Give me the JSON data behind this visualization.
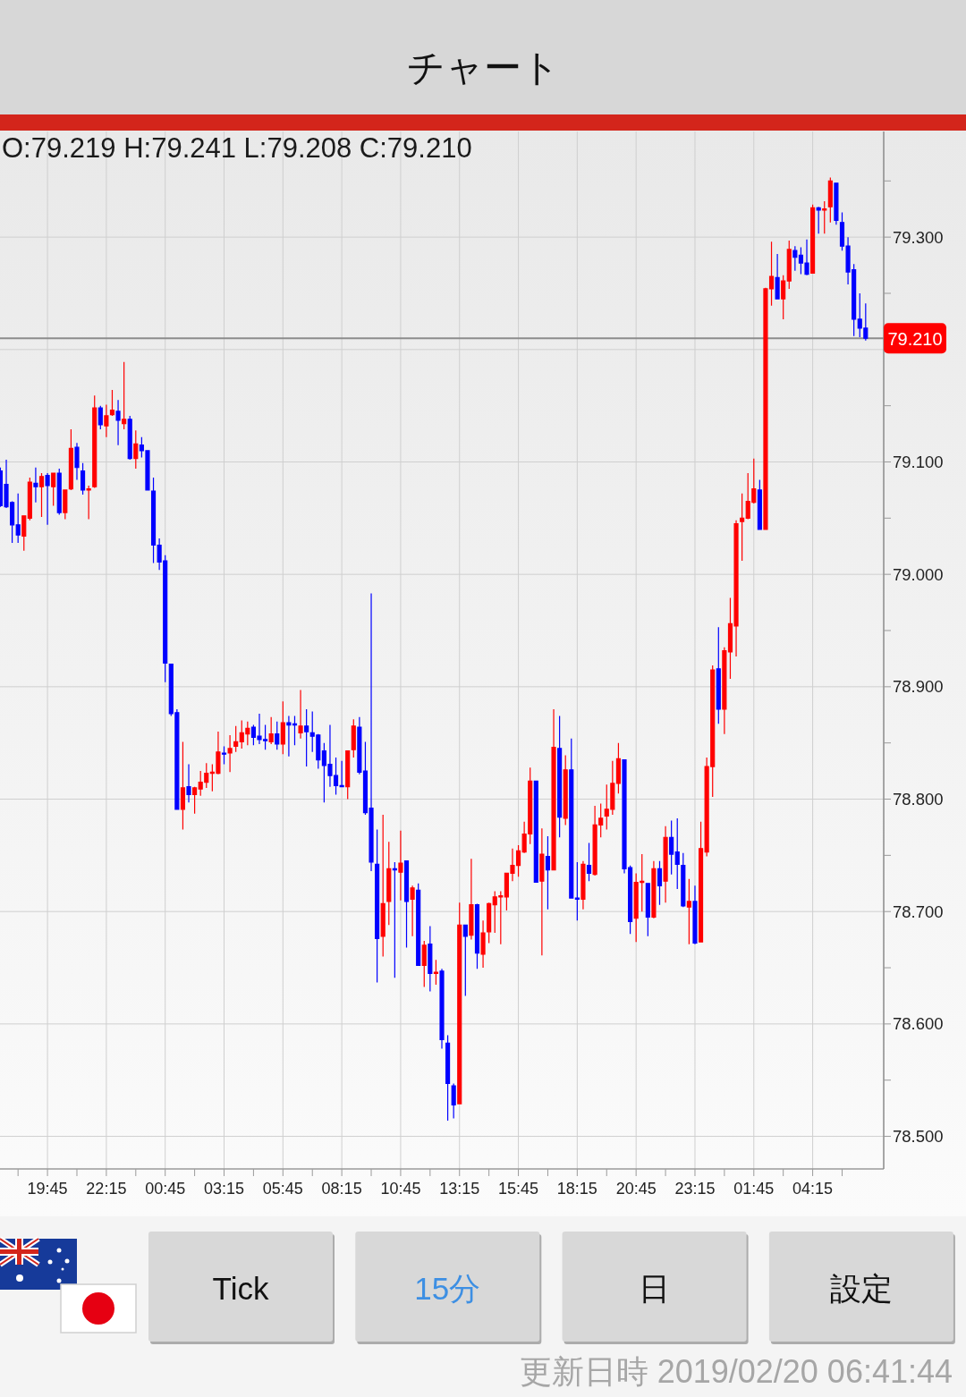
{
  "chart_data": {
    "type": "candlestick",
    "title": "チャート",
    "x": [
      "2019-02-18T17:45",
      "2019-02-18T18:00",
      "2019-02-18T18:15",
      "2019-02-18T18:30",
      "2019-02-18T18:45",
      "2019-02-18T19:00",
      "2019-02-18T19:15",
      "2019-02-18T19:30",
      "2019-02-18T19:45",
      "2019-02-18T20:00",
      "2019-02-18T20:15",
      "2019-02-18T20:30",
      "2019-02-18T20:45",
      "2019-02-18T21:00",
      "2019-02-18T21:15",
      "2019-02-18T21:30",
      "2019-02-18T21:45",
      "2019-02-18T22:00",
      "2019-02-18T22:15",
      "2019-02-18T22:30",
      "2019-02-18T22:45",
      "2019-02-18T23:00",
      "2019-02-18T23:15",
      "2019-02-18T23:30",
      "2019-02-18T23:45",
      "2019-02-19T00:00",
      "2019-02-19T00:15",
      "2019-02-19T00:30",
      "2019-02-19T00:45",
      "2019-02-19T01:00",
      "2019-02-19T01:15",
      "2019-02-19T01:30",
      "2019-02-19T01:45",
      "2019-02-19T02:00",
      "2019-02-19T02:15",
      "2019-02-19T02:30",
      "2019-02-19T02:45",
      "2019-02-19T03:00",
      "2019-02-19T03:15",
      "2019-02-19T03:30",
      "2019-02-19T03:45",
      "2019-02-19T04:00",
      "2019-02-19T04:15",
      "2019-02-19T04:30",
      "2019-02-19T04:45",
      "2019-02-19T05:00",
      "2019-02-19T05:15",
      "2019-02-19T05:30",
      "2019-02-19T05:45",
      "2019-02-19T06:00",
      "2019-02-19T06:15",
      "2019-02-19T06:30",
      "2019-02-19T06:45",
      "2019-02-19T07:00",
      "2019-02-19T07:15",
      "2019-02-19T07:30",
      "2019-02-19T07:45",
      "2019-02-19T08:00",
      "2019-02-19T08:15",
      "2019-02-19T08:30",
      "2019-02-19T08:45",
      "2019-02-19T09:00",
      "2019-02-19T09:15",
      "2019-02-19T09:30",
      "2019-02-19T09:45",
      "2019-02-19T10:00",
      "2019-02-19T10:15",
      "2019-02-19T10:30",
      "2019-02-19T10:45",
      "2019-02-19T11:00",
      "2019-02-19T11:15",
      "2019-02-19T11:30",
      "2019-02-19T11:45",
      "2019-02-19T12:00",
      "2019-02-19T12:15",
      "2019-02-19T12:30",
      "2019-02-19T12:45",
      "2019-02-19T13:00",
      "2019-02-19T13:15",
      "2019-02-19T13:30",
      "2019-02-19T13:45",
      "2019-02-19T14:00",
      "2019-02-19T14:15",
      "2019-02-19T14:30",
      "2019-02-19T14:45",
      "2019-02-19T15:00",
      "2019-02-19T15:15",
      "2019-02-19T15:30",
      "2019-02-19T15:45",
      "2019-02-19T16:00",
      "2019-02-19T16:15",
      "2019-02-19T16:30",
      "2019-02-19T16:45",
      "2019-02-19T17:00",
      "2019-02-19T17:15",
      "2019-02-19T17:30",
      "2019-02-19T17:45",
      "2019-02-19T18:00",
      "2019-02-19T18:15",
      "2019-02-19T18:30",
      "2019-02-19T18:45",
      "2019-02-19T19:00",
      "2019-02-19T19:15",
      "2019-02-19T19:30",
      "2019-02-19T19:45",
      "2019-02-19T20:00",
      "2019-02-19T20:15",
      "2019-02-19T20:30",
      "2019-02-19T20:45",
      "2019-02-19T21:00",
      "2019-02-19T21:15",
      "2019-02-19T21:30",
      "2019-02-19T21:45",
      "2019-02-19T22:00",
      "2019-02-19T22:15",
      "2019-02-19T22:30",
      "2019-02-19T22:45",
      "2019-02-19T23:00",
      "2019-02-19T23:15",
      "2019-02-19T23:30",
      "2019-02-19T23:45",
      "2019-02-20T00:00",
      "2019-02-20T00:15",
      "2019-02-20T00:30",
      "2019-02-20T00:45",
      "2019-02-20T01:00",
      "2019-02-20T01:15",
      "2019-02-20T01:30",
      "2019-02-20T01:45",
      "2019-02-20T02:00",
      "2019-02-20T02:15",
      "2019-02-20T02:30",
      "2019-02-20T02:45",
      "2019-02-20T03:00",
      "2019-02-20T03:15",
      "2019-02-20T03:30",
      "2019-02-20T03:45",
      "2019-02-20T04:00",
      "2019-02-20T04:15",
      "2019-02-20T04:30",
      "2019-02-20T04:45",
      "2019-02-20T05:00",
      "2019-02-20T05:15",
      "2019-02-20T05:30",
      "2019-02-20T05:45",
      "2019-02-20T06:00",
      "2019-02-20T06:15",
      "2019-02-20T06:30"
    ],
    "ohlc": [
      [
        79.092,
        79.095,
        79.06,
        79.061
      ],
      [
        79.08,
        79.102,
        79.059,
        79.06
      ],
      [
        79.064,
        79.065,
        79.028,
        79.044
      ],
      [
        79.044,
        79.072,
        79.028,
        79.035
      ],
      [
        79.034,
        79.052,
        79.021,
        79.052
      ],
      [
        79.05,
        79.086,
        79.048,
        79.082
      ],
      [
        79.081,
        79.095,
        79.064,
        79.078
      ],
      [
        79.078,
        79.09,
        79.051,
        79.087
      ],
      [
        79.088,
        79.09,
        79.044,
        79.079
      ],
      [
        79.078,
        79.09,
        79.061,
        79.09
      ],
      [
        79.09,
        79.094,
        79.053,
        79.055
      ],
      [
        79.055,
        79.075,
        79.049,
        79.075
      ],
      [
        79.076,
        79.129,
        79.075,
        79.112
      ],
      [
        79.113,
        79.117,
        79.084,
        79.095
      ],
      [
        79.092,
        79.099,
        79.071,
        79.075
      ],
      [
        79.075,
        79.079,
        79.049,
        79.076
      ],
      [
        79.078,
        79.159,
        79.077,
        79.148
      ],
      [
        79.148,
        79.15,
        79.129,
        79.133
      ],
      [
        79.132,
        79.151,
        79.122,
        79.141
      ],
      [
        79.142,
        79.164,
        79.141,
        79.146
      ],
      [
        79.145,
        79.155,
        79.115,
        79.137
      ],
      [
        79.134,
        79.189,
        79.129,
        79.138
      ],
      [
        79.138,
        79.141,
        79.102,
        79.103
      ],
      [
        79.103,
        79.128,
        79.094,
        79.116
      ],
      [
        79.115,
        79.122,
        79.104,
        79.11
      ],
      [
        79.11,
        79.11,
        79.075,
        79.075
      ],
      [
        79.074,
        79.086,
        79.01,
        79.026
      ],
      [
        79.026,
        79.032,
        79.004,
        79.011
      ],
      [
        79.012,
        79.017,
        78.904,
        78.921
      ],
      [
        78.92,
        78.92,
        78.874,
        78.876
      ],
      [
        78.877,
        78.88,
        78.791,
        78.791
      ],
      [
        78.791,
        78.851,
        78.773,
        78.81
      ],
      [
        78.811,
        78.831,
        78.797,
        78.804
      ],
      [
        78.804,
        78.811,
        78.787,
        78.81
      ],
      [
        78.809,
        78.825,
        78.803,
        78.815
      ],
      [
        78.815,
        78.832,
        78.81,
        78.823
      ],
      [
        78.823,
        78.831,
        78.807,
        78.824
      ],
      [
        78.823,
        78.86,
        78.822,
        78.842
      ],
      [
        78.841,
        78.847,
        78.831,
        78.84
      ],
      [
        78.841,
        78.857,
        78.824,
        78.845
      ],
      [
        78.847,
        78.865,
        78.842,
        78.851
      ],
      [
        78.851,
        78.87,
        78.845,
        78.859
      ],
      [
        78.858,
        78.869,
        78.848,
        78.863
      ],
      [
        78.864,
        78.866,
        78.848,
        78.855
      ],
      [
        78.856,
        78.876,
        78.849,
        78.853
      ],
      [
        78.853,
        78.866,
        78.844,
        78.852
      ],
      [
        78.851,
        78.873,
        78.849,
        78.858
      ],
      [
        78.858,
        78.869,
        78.844,
        78.849
      ],
      [
        78.849,
        78.887,
        78.84,
        78.868
      ],
      [
        78.868,
        78.874,
        78.838,
        78.866
      ],
      [
        78.867,
        78.874,
        78.848,
        78.866
      ],
      [
        78.859,
        78.897,
        78.854,
        78.865
      ],
      [
        78.865,
        78.88,
        78.829,
        78.86
      ],
      [
        78.859,
        78.878,
        78.842,
        78.856
      ],
      [
        78.857,
        78.858,
        78.827,
        78.835
      ],
      [
        78.843,
        78.85,
        78.797,
        78.83
      ],
      [
        78.831,
        78.866,
        78.811,
        78.821
      ],
      [
        78.821,
        78.837,
        78.804,
        78.812
      ],
      [
        78.812,
        78.834,
        78.811,
        78.811
      ],
      [
        78.811,
        78.843,
        78.8,
        78.843
      ],
      [
        78.844,
        78.871,
        78.837,
        78.865
      ],
      [
        78.864,
        78.873,
        78.822,
        78.824
      ],
      [
        78.825,
        78.851,
        78.786,
        78.788
      ],
      [
        78.792,
        78.983,
        78.736,
        78.744
      ],
      [
        78.742,
        78.773,
        78.637,
        78.676
      ],
      [
        78.678,
        78.786,
        78.66,
        78.707
      ],
      [
        78.709,
        78.762,
        78.688,
        78.738
      ],
      [
        78.738,
        78.744,
        78.641,
        78.737
      ],
      [
        78.735,
        78.772,
        78.71,
        78.743
      ],
      [
        78.745,
        78.745,
        78.668,
        78.709
      ],
      [
        78.711,
        78.723,
        78.678,
        78.721
      ],
      [
        78.719,
        78.725,
        78.652,
        78.652
      ],
      [
        78.652,
        78.674,
        78.633,
        78.67
      ],
      [
        78.671,
        78.687,
        78.629,
        78.645
      ],
      [
        78.645,
        78.657,
        78.635,
        78.646
      ],
      [
        78.647,
        78.649,
        78.578,
        78.586
      ],
      [
        78.583,
        78.59,
        78.514,
        78.547
      ],
      [
        78.545,
        78.547,
        78.516,
        78.528
      ],
      [
        78.529,
        78.708,
        78.529,
        78.688
      ],
      [
        78.688,
        78.688,
        78.625,
        78.678
      ],
      [
        78.679,
        78.747,
        78.675,
        78.706
      ],
      [
        78.706,
        78.707,
        78.649,
        78.663
      ],
      [
        78.662,
        78.692,
        78.65,
        78.681
      ],
      [
        78.682,
        78.708,
        78.672,
        78.707
      ],
      [
        78.706,
        78.718,
        78.681,
        78.713
      ],
      [
        78.713,
        78.718,
        78.671,
        78.714
      ],
      [
        78.713,
        78.734,
        78.701,
        78.734
      ],
      [
        78.734,
        78.756,
        78.727,
        78.741
      ],
      [
        78.741,
        78.759,
        78.731,
        78.754
      ],
      [
        78.753,
        78.78,
        78.752,
        78.769
      ],
      [
        78.769,
        78.828,
        78.76,
        78.816
      ],
      [
        78.816,
        78.816,
        78.726,
        78.726
      ],
      [
        78.727,
        78.774,
        78.661,
        78.751
      ],
      [
        78.749,
        78.767,
        78.702,
        78.737
      ],
      [
        78.737,
        78.88,
        78.737,
        78.846
      ],
      [
        78.845,
        78.874,
        78.766,
        78.784
      ],
      [
        78.783,
        78.839,
        78.777,
        78.826
      ],
      [
        78.826,
        78.854,
        78.712,
        78.712
      ],
      [
        78.712,
        78.744,
        78.692,
        78.711
      ],
      [
        78.711,
        78.745,
        78.702,
        78.742
      ],
      [
        78.741,
        78.761,
        78.727,
        78.734
      ],
      [
        78.733,
        78.794,
        78.732,
        78.777
      ],
      [
        78.777,
        78.796,
        78.766,
        78.783
      ],
      [
        78.785,
        78.813,
        78.773,
        78.791
      ],
      [
        78.791,
        78.834,
        78.786,
        78.814
      ],
      [
        78.814,
        78.85,
        78.805,
        78.836
      ],
      [
        78.835,
        78.835,
        78.734,
        78.738
      ],
      [
        78.739,
        78.741,
        78.68,
        78.691
      ],
      [
        78.694,
        78.734,
        78.673,
        78.726
      ],
      [
        78.726,
        78.751,
        78.7,
        78.727
      ],
      [
        78.725,
        78.725,
        78.678,
        78.695
      ],
      [
        78.695,
        78.745,
        78.694,
        78.738
      ],
      [
        78.738,
        78.745,
        78.706,
        78.723
      ],
      [
        78.727,
        78.776,
        78.708,
        78.766
      ],
      [
        78.766,
        78.781,
        78.733,
        78.751
      ],
      [
        78.753,
        78.783,
        78.72,
        78.742
      ],
      [
        78.741,
        78.752,
        78.704,
        78.705
      ],
      [
        78.704,
        78.729,
        78.671,
        78.709
      ],
      [
        78.709,
        78.723,
        78.671,
        78.672
      ],
      [
        78.673,
        78.78,
        78.673,
        78.756
      ],
      [
        78.753,
        78.837,
        78.749,
        78.829
      ],
      [
        78.829,
        78.919,
        78.802,
        78.915
      ],
      [
        78.916,
        78.953,
        78.867,
        78.88
      ],
      [
        78.88,
        78.935,
        78.858,
        78.932
      ],
      [
        78.931,
        78.979,
        78.907,
        78.956
      ],
      [
        78.954,
        79.048,
        78.927,
        79.045
      ],
      [
        79.047,
        79.072,
        79.012,
        79.05
      ],
      [
        79.05,
        79.09,
        79.049,
        79.065
      ],
      [
        79.064,
        79.103,
        79.063,
        79.076
      ],
      [
        79.075,
        79.084,
        79.04,
        79.04
      ],
      [
        79.04,
        79.255,
        79.04,
        79.254
      ],
      [
        79.254,
        79.296,
        79.239,
        79.265
      ],
      [
        79.264,
        79.285,
        79.245,
        79.245
      ],
      [
        79.245,
        79.266,
        79.227,
        79.261
      ],
      [
        79.261,
        79.297,
        79.254,
        79.289
      ],
      [
        79.288,
        79.292,
        79.27,
        79.282
      ],
      [
        79.284,
        79.291,
        79.267,
        79.277
      ],
      [
        79.277,
        79.298,
        79.266,
        79.267
      ],
      [
        79.268,
        79.329,
        79.268,
        79.326
      ],
      [
        79.326,
        79.327,
        79.303,
        79.324
      ],
      [
        79.324,
        79.332,
        79.303,
        79.325
      ],
      [
        79.327,
        79.353,
        79.313,
        79.35
      ],
      [
        79.348,
        79.348,
        79.311,
        79.315
      ],
      [
        79.313,
        79.322,
        79.288,
        79.292
      ],
      [
        79.292,
        79.3,
        79.258,
        79.269
      ],
      [
        79.271,
        79.276,
        79.212,
        79.227
      ],
      [
        79.227,
        79.25,
        79.211,
        79.219
      ],
      [
        79.219,
        79.241,
        79.208,
        79.21
      ]
    ],
    "colors": [
      "#0000ff",
      "#0000ff",
      "#0000ff",
      "#0000ff",
      "#ff0000",
      "#ff0000",
      "#0000ff",
      "#ff0000",
      "#0000ff",
      "#ff0000",
      "#0000ff",
      "#ff0000",
      "#ff0000",
      "#0000ff",
      "#0000ff",
      "#ff0000",
      "#ff0000",
      "#0000ff",
      "#ff0000",
      "#ff0000",
      "#0000ff",
      "#ff0000",
      "#0000ff",
      "#ff0000",
      "#0000ff",
      "#0000ff",
      "#0000ff",
      "#0000ff",
      "#0000ff",
      "#0000ff",
      "#0000ff",
      "#ff0000",
      "#0000ff",
      "#ff0000",
      "#ff0000",
      "#ff0000",
      "#ff0000",
      "#ff0000",
      "#0000ff",
      "#ff0000",
      "#ff0000",
      "#ff0000",
      "#ff0000",
      "#0000ff",
      "#0000ff",
      "#0000ff",
      "#ff0000",
      "#0000ff",
      "#ff0000",
      "#0000ff",
      "#0000ff",
      "#ff0000",
      "#0000ff",
      "#0000ff",
      "#0000ff",
      "#0000ff",
      "#0000ff",
      "#0000ff",
      "#0000ff",
      "#ff0000",
      "#ff0000",
      "#0000ff",
      "#0000ff",
      "#0000ff",
      "#0000ff",
      "#ff0000",
      "#ff0000",
      "#0000ff",
      "#ff0000",
      "#0000ff",
      "#ff0000",
      "#0000ff",
      "#ff0000",
      "#0000ff",
      "#ff0000",
      "#0000ff",
      "#0000ff",
      "#0000ff",
      "#ff0000",
      "#0000ff",
      "#ff0000",
      "#0000ff",
      "#ff0000",
      "#ff0000",
      "#ff0000",
      "#ff0000",
      "#ff0000",
      "#ff0000",
      "#ff0000",
      "#ff0000",
      "#ff0000",
      "#0000ff",
      "#ff0000",
      "#0000ff",
      "#ff0000",
      "#0000ff",
      "#ff0000",
      "#0000ff",
      "#0000ff",
      "#ff0000",
      "#0000ff",
      "#ff0000",
      "#ff0000",
      "#ff0000",
      "#ff0000",
      "#ff0000",
      "#0000ff",
      "#0000ff",
      "#ff0000",
      "#ff0000",
      "#0000ff",
      "#ff0000",
      "#0000ff",
      "#ff0000",
      "#0000ff",
      "#0000ff",
      "#0000ff",
      "#ff0000",
      "#0000ff",
      "#ff0000",
      "#ff0000",
      "#ff0000",
      "#0000ff",
      "#ff0000",
      "#ff0000",
      "#ff0000",
      "#ff0000",
      "#ff0000",
      "#ff0000",
      "#0000ff",
      "#ff0000",
      "#ff0000",
      "#0000ff",
      "#ff0000",
      "#ff0000",
      "#0000ff",
      "#0000ff",
      "#0000ff",
      "#ff0000",
      "#0000ff",
      "#ff0000",
      "#ff0000",
      "#0000ff",
      "#0000ff",
      "#0000ff",
      "#0000ff",
      "#0000ff",
      "#0000ff"
    ],
    "xlim": [
      "2019-02-18T17:44",
      "2019-02-20T07:16"
    ],
    "xticks": [
      {
        "value": "2019-02-18T18:30",
        "label": null
      },
      {
        "value": "2019-02-18T19:45",
        "label": "19:45"
      },
      {
        "value": "2019-02-18T21:00",
        "label": null
      },
      {
        "value": "2019-02-18T22:15",
        "label": "22:15"
      },
      {
        "value": "2019-02-18T23:30",
        "label": null
      },
      {
        "value": "2019-02-19T00:45",
        "label": "00:45"
      },
      {
        "value": "2019-02-19T02:00",
        "label": null
      },
      {
        "value": "2019-02-19T03:15",
        "label": "03:15"
      },
      {
        "value": "2019-02-19T04:30",
        "label": null
      },
      {
        "value": "2019-02-19T05:45",
        "label": "05:45"
      },
      {
        "value": "2019-02-19T07:00",
        "label": null
      },
      {
        "value": "2019-02-19T08:15",
        "label": "08:15"
      },
      {
        "value": "2019-02-19T09:30",
        "label": null
      },
      {
        "value": "2019-02-19T10:45",
        "label": "10:45"
      },
      {
        "value": "2019-02-19T12:00",
        "label": null
      },
      {
        "value": "2019-02-19T13:15",
        "label": "13:15"
      },
      {
        "value": "2019-02-19T14:30",
        "label": null
      },
      {
        "value": "2019-02-19T15:45",
        "label": "15:45"
      },
      {
        "value": "2019-02-19T17:00",
        "label": null
      },
      {
        "value": "2019-02-19T18:15",
        "label": "18:15"
      },
      {
        "value": "2019-02-19T19:30",
        "label": null
      },
      {
        "value": "2019-02-19T20:45",
        "label": "20:45"
      },
      {
        "value": "2019-02-19T22:00",
        "label": null
      },
      {
        "value": "2019-02-19T23:15",
        "label": "23:15"
      },
      {
        "value": "2019-02-20T00:30",
        "label": null
      },
      {
        "value": "2019-02-20T01:45",
        "label": "01:45"
      },
      {
        "value": "2019-02-20T03:00",
        "label": null
      },
      {
        "value": "2019-02-20T04:15",
        "label": "04:15"
      },
      {
        "value": "2019-02-20T05:30",
        "label": null
      }
    ],
    "ylim": [
      78.471,
      79.394
    ],
    "yticks": [
      {
        "value": 78.5,
        "label": "78.500"
      },
      {
        "value": 78.55,
        "label": null
      },
      {
        "value": 78.6,
        "label": "78.600"
      },
      {
        "value": 78.65,
        "label": null
      },
      {
        "value": 78.7,
        "label": "78.700"
      },
      {
        "value": 78.75,
        "label": null
      },
      {
        "value": 78.8,
        "label": "78.800"
      },
      {
        "value": 78.85,
        "label": null
      },
      {
        "value": 78.9,
        "label": "78.900"
      },
      {
        "value": 78.95,
        "label": null
      },
      {
        "value": 79.0,
        "label": "79.000"
      },
      {
        "value": 79.05,
        "label": null
      },
      {
        "value": 79.1,
        "label": "79.100"
      },
      {
        "value": 79.15,
        "label": null
      },
      {
        "value": 79.2,
        "label": null
      },
      {
        "value": 79.25,
        "label": null
      },
      {
        "value": 79.3,
        "label": "79.300"
      },
      {
        "value": 79.35,
        "label": null
      }
    ],
    "grid": true,
    "ref_lines": [
      {
        "axis": "y",
        "value": 79.21,
        "label": "79.210"
      }
    ],
    "annotations": [
      "O:79.219 H:79.241 L:79.208 C:79.210",
      "Tick",
      "15分",
      "日",
      "設定",
      "更新日時 2019/02/20 06:41:44"
    ]
  }
}
